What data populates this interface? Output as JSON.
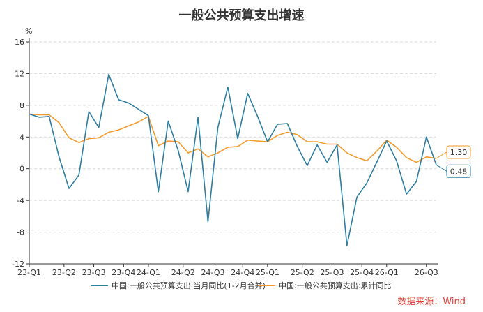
{
  "chart_data": {
    "type": "line",
    "title": "一般公共预算支出增速",
    "y_unit": "%",
    "ylim": [
      -12,
      16
    ],
    "yticks": [
      -12,
      -8,
      -4,
      0,
      4,
      8,
      12,
      16
    ],
    "x_tick_labels": [
      "23-Q1",
      "23-Q2",
      "23-Q3",
      "23-Q4",
      "24-Q1",
      "24-Q2",
      "24-Q3",
      "24-Q4",
      "25-Q1",
      "25-Q2",
      "25-Q3",
      "25-Q4",
      "26-Q1",
      "26-Q3"
    ],
    "x_tick_index": [
      0,
      3.5,
      6.5,
      9.5,
      12,
      15.5,
      18.5,
      21.5,
      24,
      27.5,
      30.5,
      33.5,
      36,
      40
    ],
    "grid": true,
    "series": [
      {
        "name": "中国:一般公共预算支出:当月同比(1-2月合并)",
        "color": "#2e7ea1",
        "values": [
          6.9,
          6.5,
          6.6,
          1.5,
          -2.5,
          -0.8,
          7.2,
          5.2,
          11.9,
          8.7,
          8.3,
          7.5,
          6.7,
          -2.9,
          6.0,
          2.3,
          -2.9,
          6.5,
          -6.7,
          5.2,
          10.3,
          3.8,
          9.5,
          6.6,
          3.4,
          5.6,
          5.7,
          2.8,
          0.4,
          3.0,
          0.8,
          3.0,
          -9.7,
          -3.6,
          -1.8,
          0.8,
          3.5,
          1.0,
          -3.2,
          -1.6,
          4.0,
          0.48
        ],
        "end_label": "0.48"
      },
      {
        "name": "中国:一般公共预算支出:累计同比",
        "color": "#f39a2c",
        "values": [
          6.9,
          6.8,
          6.8,
          5.8,
          3.9,
          3.3,
          3.8,
          3.9,
          4.6,
          4.9,
          5.4,
          5.9,
          6.6,
          2.9,
          3.5,
          3.4,
          2.0,
          2.5,
          1.5,
          2.0,
          2.7,
          2.8,
          3.6,
          3.5,
          3.4,
          4.2,
          4.6,
          4.3,
          3.4,
          3.4,
          3.1,
          3.1,
          2.0,
          1.4,
          1.0,
          2.2,
          3.6,
          2.7,
          1.4,
          0.8,
          1.5,
          1.3
        ],
        "end_label": "1.30"
      }
    ]
  },
  "source_note": "数据来源：Wind"
}
